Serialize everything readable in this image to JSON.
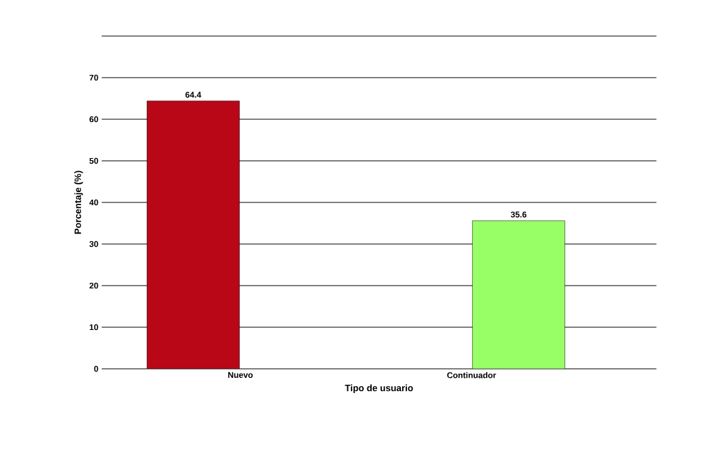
{
  "chart_data": {
    "type": "bar",
    "xlabel": "Tipo de usuario",
    "ylabel": "Porcentaje (%)",
    "categories": [
      "Nuevo",
      "Continuador"
    ],
    "values": [
      64.4,
      35.6
    ],
    "colors": [
      "#b90718",
      "#99ff66"
    ],
    "ylim": [
      0,
      80
    ],
    "yticks": [
      0,
      10,
      20,
      30,
      40,
      50,
      60,
      70,
      {
        "value": 80,
        "label": null
      }
    ],
    "grid": "y",
    "data_labels": true
  }
}
